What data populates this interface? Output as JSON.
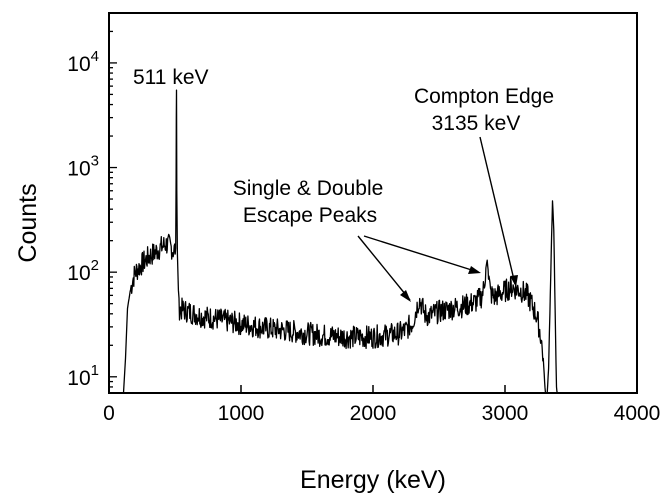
{
  "chart_data": {
    "type": "line",
    "xlabel": "Energy (keV)",
    "ylabel": "Counts",
    "xlim": [
      0,
      4000
    ],
    "ylim": [
      7,
      30000
    ],
    "yscale": "log",
    "grid": false,
    "legend": "none",
    "x_ticks": [
      {
        "value": 0,
        "label": "0"
      },
      {
        "value": 1000,
        "label": "1000"
      },
      {
        "value": 2000,
        "label": "2000"
      },
      {
        "value": 3000,
        "label": "3000"
      },
      {
        "value": 4000,
        "label": "4000"
      }
    ],
    "y_ticks": [
      {
        "value": 10,
        "base": "10",
        "exp": "1"
      },
      {
        "value": 100,
        "base": "10",
        "exp": "2"
      },
      {
        "value": 1000,
        "base": "10",
        "exp": "3"
      },
      {
        "value": 10000,
        "base": "10",
        "exp": "4"
      }
    ],
    "series": [
      {
        "color": "#000000",
        "x": [
          110,
          125,
          140,
          160,
          180,
          200,
          250,
          300,
          350,
          400,
          430,
          460,
          490,
          505,
          508,
          510,
          511,
          512,
          514,
          518,
          530,
          600,
          700,
          800,
          900,
          1000,
          1200,
          1400,
          1600,
          1800,
          2000,
          2100,
          2200,
          2250,
          2300,
          2330,
          2350,
          2370,
          2390,
          2420,
          2500,
          2600,
          2700,
          2780,
          2820,
          2840,
          2855,
          2865,
          2875,
          2890,
          2920,
          2960,
          3000,
          3050,
          3100,
          3135,
          3170,
          3200,
          3240,
          3270,
          3290,
          3300,
          3310,
          3320,
          3330,
          3340,
          3350,
          3360,
          3370,
          3380,
          3390,
          3400
        ],
        "y": [
          7,
          15,
          45,
          65,
          85,
          100,
          120,
          140,
          155,
          175,
          185,
          180,
          160,
          170,
          800,
          3000,
          5500,
          3000,
          600,
          150,
          45,
          42,
          38,
          36,
          34,
          32,
          29,
          27,
          25,
          24,
          24,
          25,
          26,
          28,
          33,
          45,
          55,
          48,
          40,
          38,
          42,
          45,
          48,
          52,
          58,
          70,
          110,
          130,
          95,
          62,
          58,
          62,
          66,
          72,
          68,
          65,
          60,
          50,
          38,
          25,
          15,
          9,
          6,
          7,
          12,
          40,
          150,
          480,
          250,
          40,
          8,
          6
        ]
      }
    ],
    "annotations": [
      {
        "text": "511 keV"
      },
      {
        "text": "Single & Double"
      },
      {
        "text": "Escape Peaks"
      },
      {
        "text": "Compton Edge"
      },
      {
        "text": "3135 keV"
      }
    ]
  }
}
